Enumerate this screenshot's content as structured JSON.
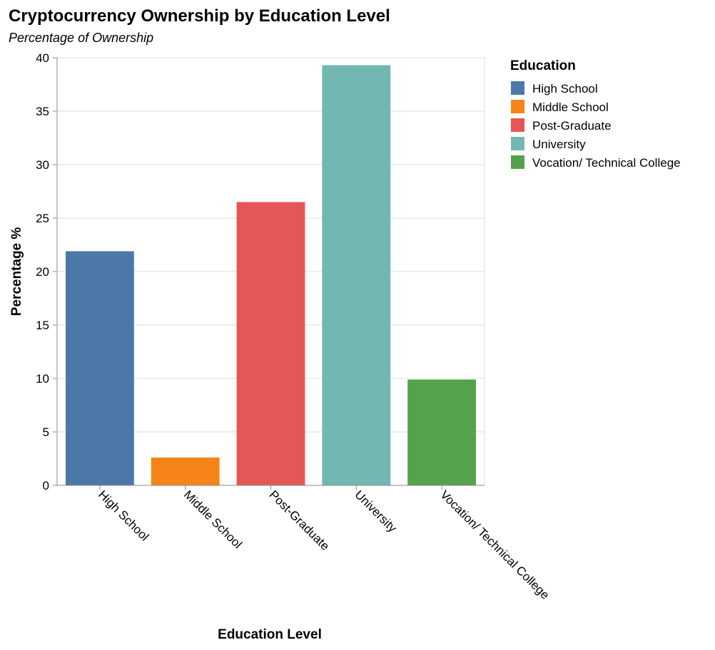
{
  "chart_data": {
    "type": "bar",
    "title": "Cryptocurrency Ownership by Education Level",
    "subtitle": "Percentage of Ownership",
    "xlabel": "Education Level",
    "ylabel": "Percentage %",
    "ylim": [
      0,
      40
    ],
    "yticks": [
      "0",
      "5",
      "10",
      "15",
      "20",
      "25",
      "30",
      "35",
      "40"
    ],
    "grid": true,
    "categories": [
      "High School",
      "Middle School",
      "Post-Graduate",
      "University",
      "Vocation/ Technical College"
    ],
    "values": [
      21.9,
      2.6,
      26.5,
      39.3,
      9.9
    ],
    "colors": [
      "#4c78a8",
      "#f58518",
      "#e45756",
      "#72b7b2",
      "#54a24b"
    ],
    "legend": {
      "title": "Education",
      "position": "right",
      "entries": [
        "High School",
        "Middle School",
        "Post-Graduate",
        "University",
        "Vocation/ Technical College"
      ]
    }
  }
}
